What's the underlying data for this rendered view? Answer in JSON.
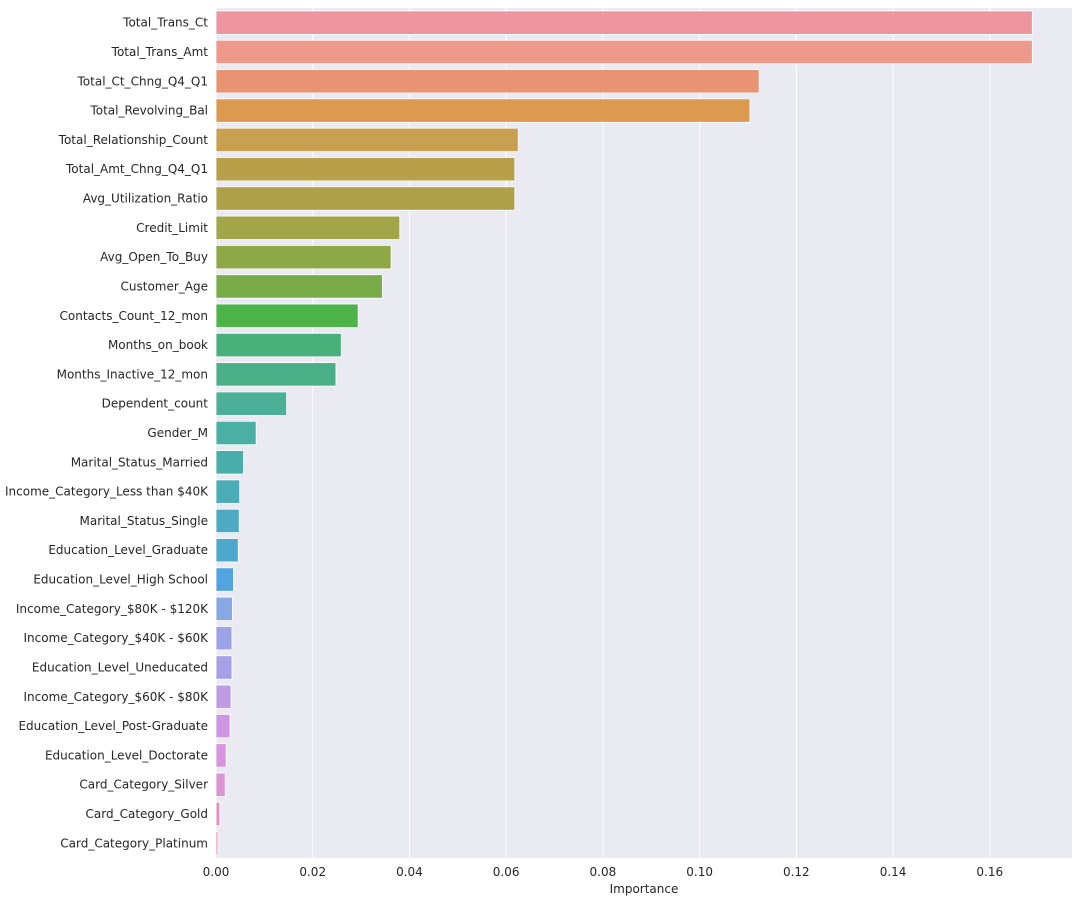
{
  "chart_data": {
    "type": "bar",
    "orientation": "horizontal",
    "xlabel": "Importance",
    "ylabel": "",
    "xlim": [
      0,
      0.177
    ],
    "x_ticks": [
      0.0,
      0.02,
      0.04,
      0.06,
      0.08,
      0.1,
      0.12,
      0.14,
      0.16
    ],
    "x_tick_labels": [
      "0.00",
      "0.02",
      "0.04",
      "0.06",
      "0.08",
      "0.10",
      "0.12",
      "0.14",
      "0.16"
    ],
    "grid": true,
    "background": "#EAEAF2",
    "categories": [
      "Total_Trans_Ct",
      "Total_Trans_Amt",
      "Total_Ct_Chng_Q4_Q1",
      "Total_Revolving_Bal",
      "Total_Relationship_Count",
      "Total_Amt_Chng_Q4_Q1",
      "Avg_Utilization_Ratio",
      "Credit_Limit",
      "Avg_Open_To_Buy",
      "Customer_Age",
      "Contacts_Count_12_mon",
      "Months_on_book",
      "Months_Inactive_12_mon",
      "Dependent_count",
      "Gender_M",
      "Marital_Status_Married",
      "Income_Category_Less than $40K",
      "Marital_Status_Single",
      "Education_Level_Graduate",
      "Education_Level_High School",
      "Income_Category_$80K - $120K",
      "Income_Category_$40K - $60K",
      "Education_Level_Uneducated",
      "Income_Category_$60K - $80K",
      "Education_Level_Post-Graduate",
      "Education_Level_Doctorate",
      "Card_Category_Silver",
      "Card_Category_Gold",
      "Card_Category_Platinum"
    ],
    "values": [
      0.1688,
      0.1688,
      0.1123,
      0.1104,
      0.0625,
      0.0618,
      0.0618,
      0.038,
      0.0362,
      0.0344,
      0.0294,
      0.0259,
      0.0248,
      0.0146,
      0.0083,
      0.0057,
      0.0049,
      0.0048,
      0.0046,
      0.0036,
      0.0034,
      0.0033,
      0.0033,
      0.0031,
      0.0029,
      0.0021,
      0.0019,
      0.0008,
      0.0004
    ],
    "colors": [
      "#ED96A0",
      "#ED9A8C",
      "#E89472",
      "#DC9A50",
      "#C8A050",
      "#B8A04A",
      "#AEA048",
      "#A2A648",
      "#8EA848",
      "#78AC48",
      "#4CB448",
      "#48B07A",
      "#4AB088",
      "#4CB098",
      "#4AB0A4",
      "#48AEAC",
      "#4AACB6",
      "#4CAAC2",
      "#4CA8CC",
      "#52A4E0",
      "#88A8E4",
      "#9CA2E6",
      "#A8A0E6",
      "#BE9CE4",
      "#CE96E2",
      "#D894DE",
      "#DC94D4",
      "#E292C2",
      "#E892B0"
    ]
  }
}
